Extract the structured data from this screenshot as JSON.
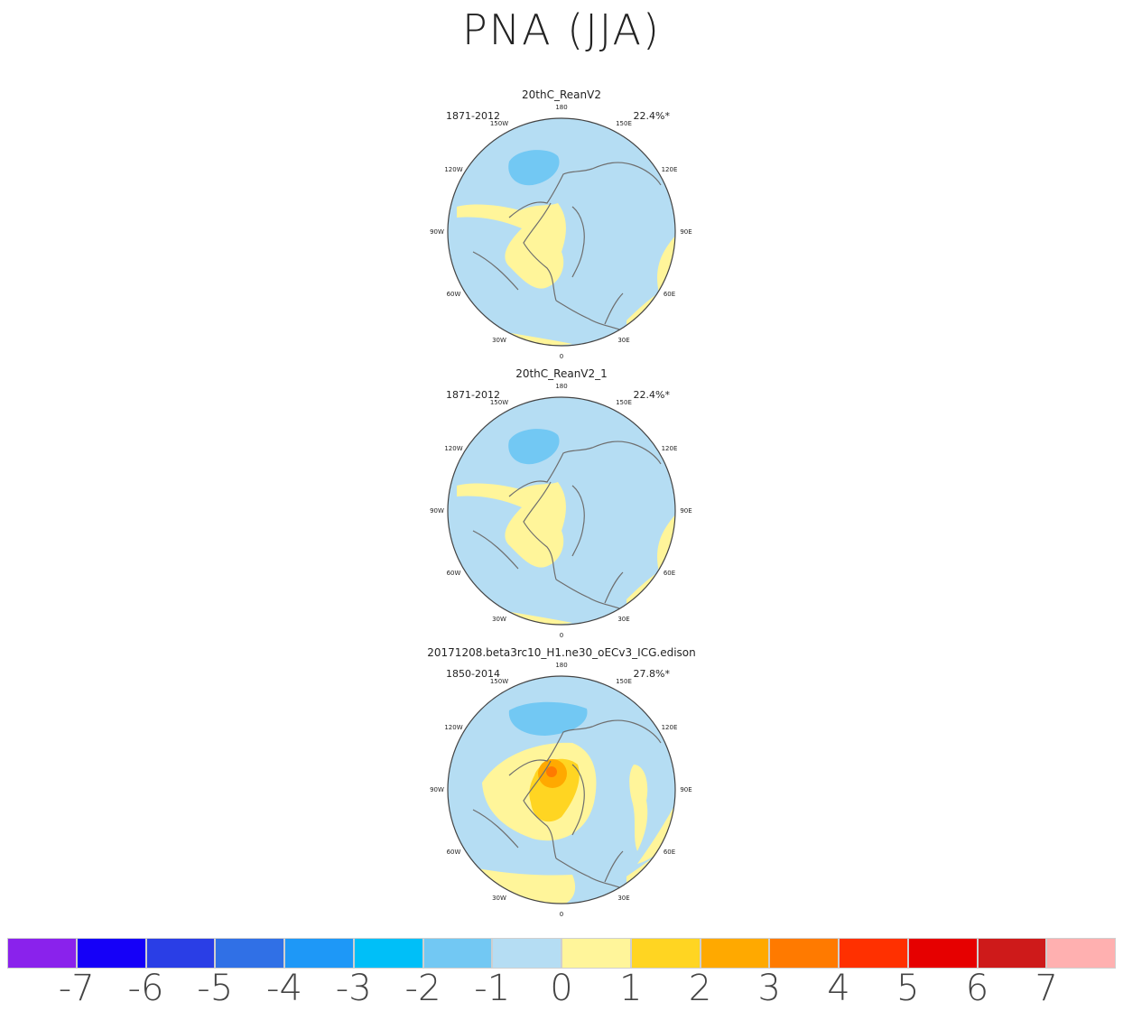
{
  "title": "PNA (JJA)",
  "panels": [
    {
      "name": "20thC_ReanV2",
      "period": "1871-2012",
      "percent": "22.4%*",
      "variant": "obs"
    },
    {
      "name": "20thC_ReanV2_1",
      "period": "1871-2012",
      "percent": "22.4%*",
      "variant": "obs"
    },
    {
      "name": "20171208.beta3rc10_H1.ne30_oECv3_ICG.edison",
      "period": "1850-2014",
      "percent": "27.8%*",
      "variant": "model"
    }
  ],
  "longitude_labels": [
    "180",
    "150E",
    "120E",
    "90E",
    "60E",
    "30E",
    "0",
    "30W",
    "60W",
    "90W",
    "120W",
    "150W"
  ],
  "colorbar": {
    "colors": [
      "#8a22ec",
      "#1500f8",
      "#2a3ee6",
      "#3070e6",
      "#1e98f7",
      "#00bff8",
      "#72c8f3",
      "#b5ddf3",
      "#fff59a",
      "#ffd522",
      "#ffa900",
      "#ff7a00",
      "#ff3000",
      "#e60000",
      "#ce1a1a",
      "#ffb0b0"
    ],
    "labels": [
      "-7",
      "-6",
      "-5",
      "-4",
      "-3",
      "-2",
      "-1",
      "0",
      "1",
      "2",
      "3",
      "4",
      "5",
      "6",
      "7"
    ]
  },
  "chart_data": {
    "type": "heatmap",
    "projection": "north polar stereographic",
    "title": "PNA (JJA)",
    "colorbar_levels": [
      -7,
      -6,
      -5,
      -4,
      -3,
      -2,
      -1,
      0,
      1,
      2,
      3,
      4,
      5,
      6,
      7
    ],
    "panels": [
      {
        "name": "20thC_ReanV2",
        "period": "1871-2012",
        "explained_variance_pct": 22.4,
        "range_shown": [
          -2,
          1
        ]
      },
      {
        "name": "20thC_ReanV2_1",
        "period": "1871-2012",
        "explained_variance_pct": 22.4,
        "range_shown": [
          -2,
          1
        ]
      },
      {
        "name": "20171208.beta3rc10_H1.ne30_oECv3_ICG.edison",
        "period": "1850-2014",
        "explained_variance_pct": 27.8,
        "range_shown": [
          -2,
          4
        ]
      }
    ]
  }
}
